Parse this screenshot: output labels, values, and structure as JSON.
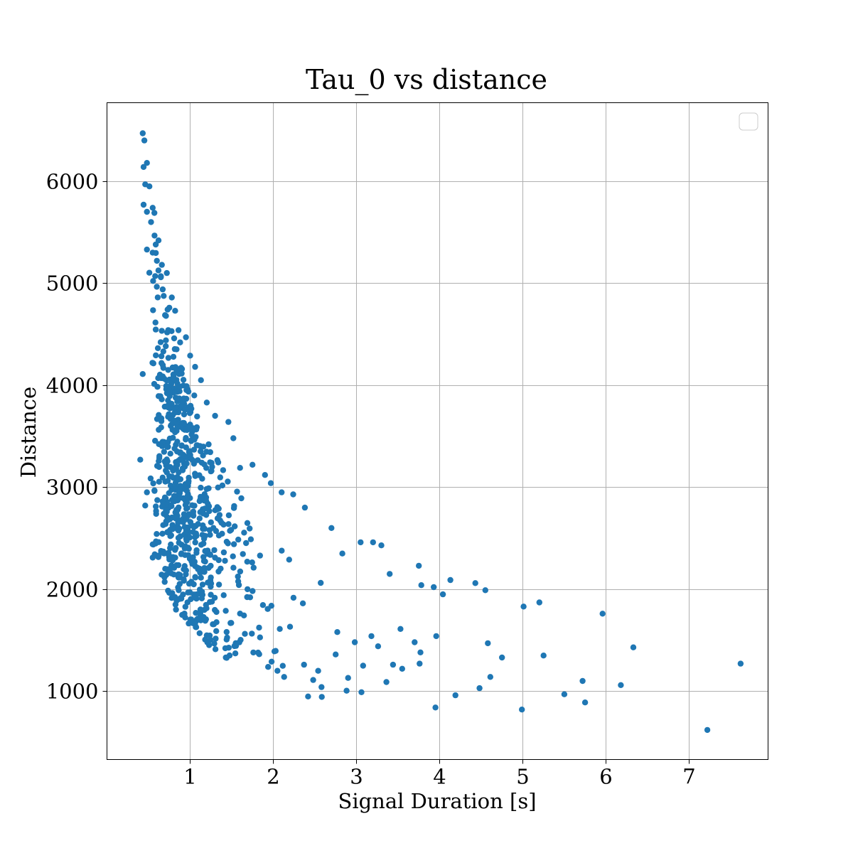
{
  "chart_data": {
    "type": "scatter",
    "title": "Tau_0 vs distance",
    "xlabel": "Signal Duration [s]",
    "ylabel": "Distance",
    "xlim": [
      0.0,
      7.95
    ],
    "ylim": [
      330,
      6770
    ],
    "xticks": [
      1,
      2,
      3,
      4,
      5,
      6,
      7
    ],
    "yticks": [
      1000,
      2000,
      3000,
      4000,
      5000,
      6000
    ],
    "grid": true,
    "legend": {
      "placement": "top-right",
      "entries": []
    },
    "point_color": "#1f77b4",
    "sample_count": 700,
    "sample_seed": 7,
    "points": [
      [
        0.43,
        6470
      ],
      [
        0.45,
        6400
      ],
      [
        0.44,
        6140
      ],
      [
        0.48,
        6180
      ],
      [
        0.46,
        5970
      ],
      [
        0.51,
        5950
      ],
      [
        0.44,
        5770
      ],
      [
        0.48,
        5700
      ],
      [
        0.55,
        5740
      ],
      [
        0.57,
        5690
      ],
      [
        0.53,
        5600
      ],
      [
        0.62,
        5420
      ],
      [
        0.48,
        5330
      ],
      [
        0.55,
        5300
      ],
      [
        0.6,
        5220
      ],
      [
        0.66,
        5180
      ],
      [
        0.72,
        5100
      ],
      [
        0.58,
        5070
      ],
      [
        0.67,
        4940
      ],
      [
        0.78,
        4860
      ],
      [
        0.75,
        4760
      ],
      [
        0.82,
        4730
      ],
      [
        0.86,
        4540
      ],
      [
        0.95,
        4470
      ],
      [
        0.88,
        4420
      ],
      [
        1.0,
        4290
      ],
      [
        1.06,
        4180
      ],
      [
        1.13,
        4050
      ],
      [
        1.05,
        3900
      ],
      [
        1.2,
        3830
      ],
      [
        1.3,
        3700
      ],
      [
        1.46,
        3640
      ],
      [
        1.52,
        3480
      ],
      [
        1.6,
        3190
      ],
      [
        1.75,
        3220
      ],
      [
        1.9,
        3120
      ],
      [
        1.97,
        3040
      ],
      [
        2.1,
        2950
      ],
      [
        2.24,
        2930
      ],
      [
        2.38,
        2800
      ],
      [
        2.7,
        2600
      ],
      [
        2.83,
        2350
      ],
      [
        3.05,
        2460
      ],
      [
        3.2,
        2460
      ],
      [
        3.3,
        2430
      ],
      [
        3.4,
        2150
      ],
      [
        3.75,
        2230
      ],
      [
        3.78,
        2040
      ],
      [
        3.93,
        2020
      ],
      [
        4.13,
        2090
      ],
      [
        4.04,
        1950
      ],
      [
        4.43,
        2060
      ],
      [
        4.55,
        1990
      ],
      [
        5.01,
        1830
      ],
      [
        5.2,
        1870
      ],
      [
        5.96,
        1760
      ],
      [
        6.33,
        1430
      ],
      [
        7.62,
        1270
      ],
      [
        7.22,
        620
      ],
      [
        4.99,
        820
      ],
      [
        5.75,
        890
      ],
      [
        5.5,
        970
      ],
      [
        6.18,
        1060
      ],
      [
        5.72,
        1100
      ],
      [
        5.25,
        1350
      ],
      [
        4.75,
        1330
      ],
      [
        4.58,
        1470
      ],
      [
        4.61,
        1140
      ],
      [
        4.48,
        1030
      ],
      [
        4.19,
        960
      ],
      [
        3.95,
        840
      ],
      [
        3.96,
        1540
      ],
      [
        3.77,
        1380
      ],
      [
        3.76,
        1270
      ],
      [
        3.7,
        1480
      ],
      [
        3.53,
        1610
      ],
      [
        3.55,
        1220
      ],
      [
        3.44,
        1260
      ],
      [
        3.36,
        1090
      ],
      [
        3.26,
        1440
      ],
      [
        3.18,
        1540
      ],
      [
        3.08,
        1250
      ],
      [
        3.06,
        990
      ],
      [
        2.98,
        1480
      ],
      [
        2.9,
        1130
      ],
      [
        2.77,
        1580
      ],
      [
        2.75,
        1360
      ],
      [
        2.58,
        1040
      ],
      [
        2.54,
        1200
      ],
      [
        2.48,
        1110
      ],
      [
        2.37,
        1260
      ],
      [
        2.13,
        1140
      ],
      [
        2.05,
        1200
      ],
      [
        1.98,
        1290
      ],
      [
        0.7,
        2200
      ],
      [
        0.83,
        1800
      ],
      [
        0.55,
        2310
      ],
      [
        0.55,
        2440
      ],
      [
        0.4,
        3270
      ],
      [
        0.48,
        2950
      ],
      [
        0.46,
        2820
      ],
      [
        0.43,
        4110
      ]
    ]
  }
}
